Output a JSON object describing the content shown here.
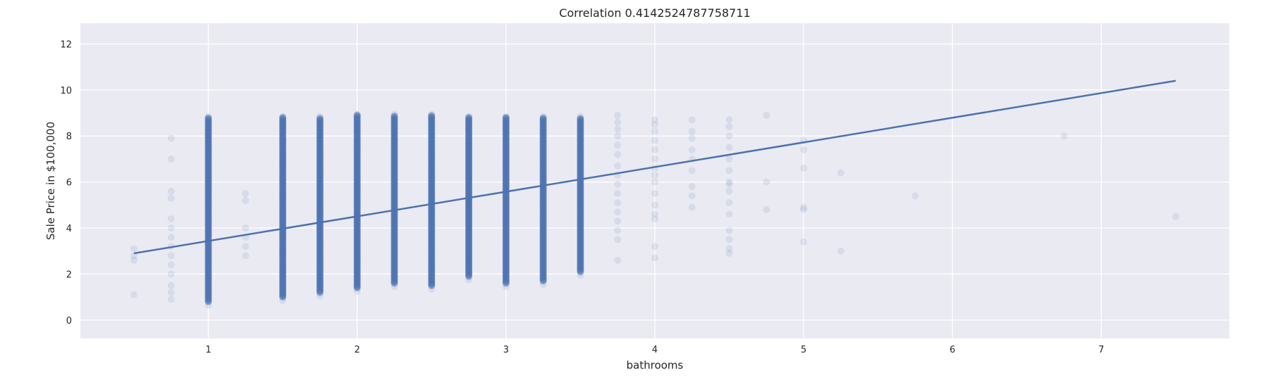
{
  "chart_data": {
    "type": "scatter",
    "title": "Correlation 0.4142524787758711",
    "xlabel": "bathrooms",
    "ylabel": "Sale Price in $100,000",
    "xlim": [
      0.14,
      7.86
    ],
    "ylim": [
      -0.8,
      12.9
    ],
    "x_ticks": [
      1,
      2,
      3,
      4,
      5,
      6,
      7
    ],
    "y_ticks": [
      0,
      2,
      4,
      6,
      8,
      10,
      12
    ],
    "grid": true,
    "colors": {
      "background": "#eaeaf2",
      "points": "#4c72b0",
      "line": "#4c72b0",
      "grid": "#ffffff"
    },
    "point_opacity": 0.12,
    "bands": [
      {
        "x": 1.0,
        "min": 0.8,
        "max": 8.8,
        "dense": true
      },
      {
        "x": 1.5,
        "min": 1.0,
        "max": 8.8,
        "dense": true
      },
      {
        "x": 1.75,
        "min": 1.2,
        "max": 8.8,
        "dense": true
      },
      {
        "x": 2.0,
        "min": 1.4,
        "max": 8.9,
        "dense": true
      },
      {
        "x": 2.25,
        "min": 1.6,
        "max": 8.9,
        "dense": true
      },
      {
        "x": 2.5,
        "min": 1.5,
        "max": 8.9,
        "dense": true
      },
      {
        "x": 2.75,
        "min": 1.9,
        "max": 8.8,
        "dense": true
      },
      {
        "x": 3.0,
        "min": 1.6,
        "max": 8.8,
        "dense": true
      },
      {
        "x": 3.25,
        "min": 1.7,
        "max": 8.8,
        "dense": true
      },
      {
        "x": 3.5,
        "min": 2.1,
        "max": 8.8,
        "dense": true
      }
    ],
    "points": [
      [
        0.5,
        1.1
      ],
      [
        0.5,
        2.6
      ],
      [
        0.5,
        2.8
      ],
      [
        0.5,
        3.1
      ],
      [
        0.75,
        0.9
      ],
      [
        0.75,
        1.2
      ],
      [
        0.75,
        1.5
      ],
      [
        0.75,
        2.0
      ],
      [
        0.75,
        2.4
      ],
      [
        0.75,
        2.8
      ],
      [
        0.75,
        3.2
      ],
      [
        0.75,
        3.6
      ],
      [
        0.75,
        4.0
      ],
      [
        0.75,
        4.4
      ],
      [
        0.75,
        5.3
      ],
      [
        0.75,
        5.6
      ],
      [
        0.75,
        7.0
      ],
      [
        0.75,
        7.9
      ],
      [
        1.25,
        2.8
      ],
      [
        1.25,
        3.2
      ],
      [
        1.25,
        3.6
      ],
      [
        1.25,
        4.0
      ],
      [
        1.25,
        5.2
      ],
      [
        1.25,
        5.5
      ],
      [
        3.75,
        2.6
      ],
      [
        3.75,
        3.5
      ],
      [
        3.75,
        3.9
      ],
      [
        3.75,
        4.3
      ],
      [
        3.75,
        4.7
      ],
      [
        3.75,
        5.1
      ],
      [
        3.75,
        5.5
      ],
      [
        3.75,
        5.9
      ],
      [
        3.75,
        6.3
      ],
      [
        3.75,
        6.7
      ],
      [
        3.75,
        7.2
      ],
      [
        3.75,
        7.6
      ],
      [
        3.75,
        8.0
      ],
      [
        3.75,
        8.3
      ],
      [
        3.75,
        8.6
      ],
      [
        3.75,
        8.9
      ],
      [
        4.0,
        2.7
      ],
      [
        4.0,
        3.2
      ],
      [
        4.0,
        4.4
      ],
      [
        4.0,
        4.6
      ],
      [
        4.0,
        5.0
      ],
      [
        4.0,
        5.5
      ],
      [
        4.0,
        6.0
      ],
      [
        4.0,
        6.3
      ],
      [
        4.0,
        6.6
      ],
      [
        4.0,
        7.0
      ],
      [
        4.0,
        7.4
      ],
      [
        4.0,
        7.8
      ],
      [
        4.0,
        8.2
      ],
      [
        4.0,
        8.5
      ],
      [
        4.0,
        8.7
      ],
      [
        4.25,
        4.9
      ],
      [
        4.25,
        5.4
      ],
      [
        4.25,
        5.8
      ],
      [
        4.25,
        6.5
      ],
      [
        4.25,
        7.0
      ],
      [
        4.25,
        7.4
      ],
      [
        4.25,
        7.9
      ],
      [
        4.25,
        8.2
      ],
      [
        4.25,
        8.7
      ],
      [
        4.5,
        2.9
      ],
      [
        4.5,
        3.1
      ],
      [
        4.5,
        3.5
      ],
      [
        4.5,
        3.9
      ],
      [
        4.5,
        4.6
      ],
      [
        4.5,
        5.1
      ],
      [
        4.5,
        5.6
      ],
      [
        4.5,
        5.9
      ],
      [
        4.5,
        6.0
      ],
      [
        4.5,
        6.5
      ],
      [
        4.5,
        7.0
      ],
      [
        4.5,
        7.5
      ],
      [
        4.5,
        8.0
      ],
      [
        4.5,
        8.4
      ],
      [
        4.5,
        8.7
      ],
      [
        4.75,
        4.8
      ],
      [
        4.75,
        6.0
      ],
      [
        4.75,
        8.9
      ],
      [
        5.0,
        3.4
      ],
      [
        5.0,
        4.8
      ],
      [
        5.0,
        4.9
      ],
      [
        5.0,
        6.6
      ],
      [
        5.0,
        7.4
      ],
      [
        5.0,
        7.8
      ],
      [
        5.25,
        3.0
      ],
      [
        5.25,
        6.4
      ],
      [
        5.75,
        5.4
      ],
      [
        6.75,
        8.0
      ],
      [
        7.5,
        4.5
      ]
    ],
    "regression": {
      "x0": 0.5,
      "y0": 2.9,
      "x1": 7.5,
      "y1": 10.4
    }
  }
}
